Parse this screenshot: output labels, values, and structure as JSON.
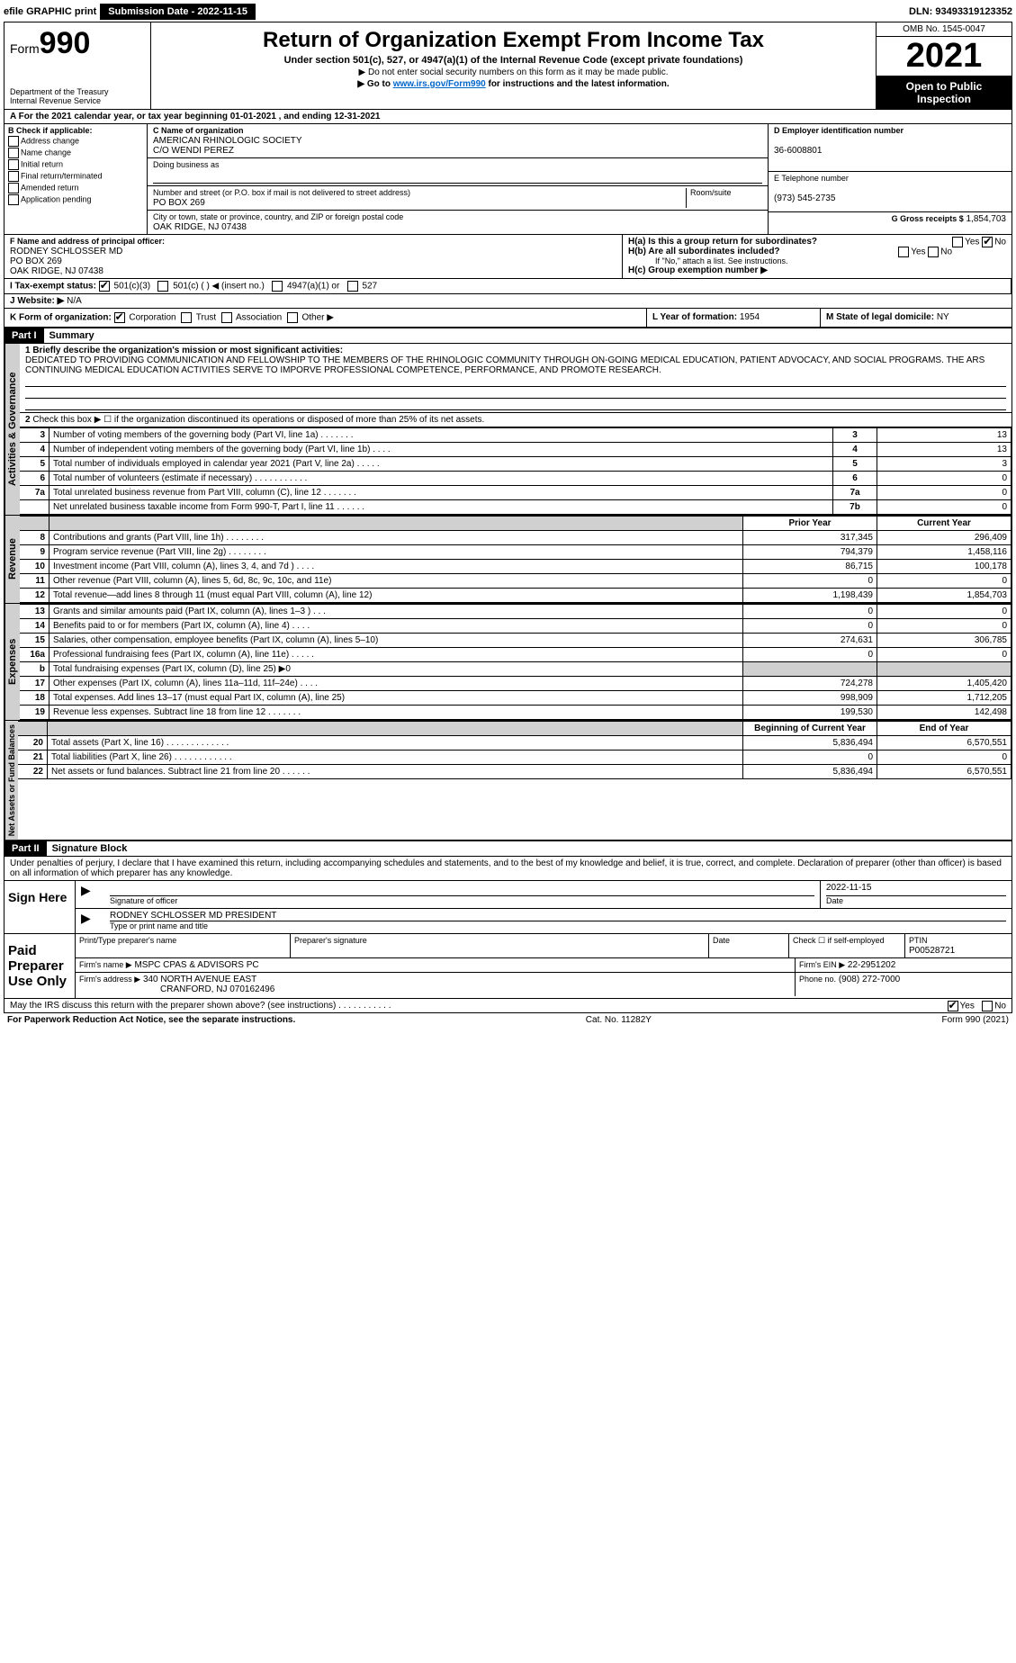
{
  "topbar": {
    "efile": "efile GRAPHIC print",
    "submission_label": "Submission Date - 2022-11-15",
    "dln": "DLN: 93493319123352"
  },
  "header": {
    "form_label": "Form",
    "form_number": "990",
    "dept1": "Department of the Treasury",
    "dept2": "Internal Revenue Service",
    "title": "Return of Organization Exempt From Income Tax",
    "subtitle": "Under section 501(c), 527, or 4947(a)(1) of the Internal Revenue Code (except private foundations)",
    "note1": "▶ Do not enter social security numbers on this form as it may be made public.",
    "note2_pre": "▶ Go to ",
    "note2_link": "www.irs.gov/Form990",
    "note2_post": " for instructions and the latest information.",
    "omb": "OMB No. 1545-0047",
    "year": "2021",
    "inspection": "Open to Public Inspection"
  },
  "periodA": "A For the 2021 calendar year, or tax year beginning 01-01-2021    , and ending 12-31-2021",
  "boxB": {
    "title": "B Check if applicable:",
    "opts": [
      "Address change",
      "Name change",
      "Initial return",
      "Final return/terminated",
      "Amended return",
      "Application pending"
    ]
  },
  "boxC": {
    "label": "C Name of organization",
    "name": "AMERICAN RHINOLOGIC SOCIETY",
    "co": "C/O WENDI PEREZ",
    "dba_label": "Doing business as",
    "addr_label": "Number and street (or P.O. box if mail is not delivered to street address)",
    "room_label": "Room/suite",
    "addr": "PO BOX 269",
    "city_label": "City or town, state or province, country, and ZIP or foreign postal code",
    "city": "OAK RIDGE, NJ  07438"
  },
  "boxD": {
    "label": "D Employer identification number",
    "value": "36-6008801"
  },
  "boxE": {
    "label": "E Telephone number",
    "value": "(973) 545-2735"
  },
  "boxG": {
    "label": "G Gross receipts $",
    "value": "1,854,703"
  },
  "boxF": {
    "label": "F Name and address of principal officer:",
    "name": "RODNEY SCHLOSSER MD",
    "addr1": "PO BOX 269",
    "addr2": "OAK RIDGE, NJ  07438"
  },
  "boxH": {
    "a": "H(a) Is this a group return for subordinates?",
    "b": "H(b) Are all subordinates included?",
    "note": "If \"No,\" attach a list. See instructions.",
    "c": "H(c) Group exemption number ▶",
    "yes": "Yes",
    "no": "No"
  },
  "boxI": {
    "label": "I Tax-exempt status:",
    "o1": "501(c)(3)",
    "o2": "501(c) (    ) ◀ (insert no.)",
    "o3": "4947(a)(1) or",
    "o4": "527"
  },
  "boxJ": {
    "label": "J Website: ▶",
    "value": "N/A"
  },
  "boxK": {
    "label": "K Form of organization:",
    "o1": "Corporation",
    "o2": "Trust",
    "o3": "Association",
    "o4": "Other ▶"
  },
  "boxL": {
    "label": "L Year of formation:",
    "value": "1954"
  },
  "boxM": {
    "label": "M State of legal domicile:",
    "value": "NY"
  },
  "part1": {
    "tag": "Part I",
    "title": "Summary",
    "side_a": "Activities & Governance",
    "side_b": "Revenue",
    "side_c": "Expenses",
    "side_d": "Net Assets or Fund Balances",
    "l1_label": "1 Briefly describe the organization's mission or most significant activities:",
    "l1_text": "DEDICATED TO PROVIDING COMMUNICATION AND FELLOWSHIP TO THE MEMBERS OF THE RHINOLOGIC COMMUNITY THROUGH ON-GOING MEDICAL EDUCATION, PATIENT ADVOCACY, AND SOCIAL PROGRAMS. THE ARS CONTINUING MEDICAL EDUCATION ACTIVITIES SERVE TO IMPORVE PROFESSIONAL COMPETENCE, PERFORMANCE, AND PROMOTE RESEARCH.",
    "l2": "Check this box ▶ ☐ if the organization discontinued its operations or disposed of more than 25% of its net assets.",
    "lines_a": [
      {
        "n": "3",
        "d": "Number of voting members of the governing body (Part VI, line 1a)  .    .    .    .    .    .    .",
        "b": "3",
        "v": "13"
      },
      {
        "n": "4",
        "d": "Number of independent voting members of the governing body (Part VI, line 1b)   .    .    .    .",
        "b": "4",
        "v": "13"
      },
      {
        "n": "5",
        "d": "Total number of individuals employed in calendar year 2021 (Part V, line 2a)   .    .    .    .    .",
        "b": "5",
        "v": "3"
      },
      {
        "n": "6",
        "d": "Total number of volunteers (estimate if necessary)    .    .    .    .    .    .    .    .    .    .    .",
        "b": "6",
        "v": "0"
      },
      {
        "n": "7a",
        "d": "Total unrelated business revenue from Part VIII, column (C), line 12    .    .    .    .    .    .    .",
        "b": "7a",
        "v": "0"
      },
      {
        "n": "",
        "d": "Net unrelated business taxable income from Form 990-T, Part I, line 11    .    .    .    .    .    .",
        "b": "7b",
        "v": "0"
      }
    ],
    "col_prior": "Prior Year",
    "col_current": "Current Year",
    "lines_b": [
      {
        "n": "8",
        "d": "Contributions and grants (Part VIII, line 1h)   .    .    .    .    .    .    .    .",
        "p": "317,345",
        "c": "296,409"
      },
      {
        "n": "9",
        "d": "Program service revenue (Part VIII, line 2g)   .    .    .    .    .    .    .    .",
        "p": "794,379",
        "c": "1,458,116"
      },
      {
        "n": "10",
        "d": "Investment income (Part VIII, column (A), lines 3, 4, and 7d )   .    .    .    .",
        "p": "86,715",
        "c": "100,178"
      },
      {
        "n": "11",
        "d": "Other revenue (Part VIII, column (A), lines 5, 6d, 8c, 9c, 10c, and 11e)",
        "p": "0",
        "c": "0"
      },
      {
        "n": "12",
        "d": "Total revenue—add lines 8 through 11 (must equal Part VIII, column (A), line 12)",
        "p": "1,198,439",
        "c": "1,854,703"
      }
    ],
    "lines_c": [
      {
        "n": "13",
        "d": "Grants and similar amounts paid (Part IX, column (A), lines 1–3 )   .    .    .",
        "p": "0",
        "c": "0"
      },
      {
        "n": "14",
        "d": "Benefits paid to or for members (Part IX, column (A), line 4)   .    .    .    .",
        "p": "0",
        "c": "0"
      },
      {
        "n": "15",
        "d": "Salaries, other compensation, employee benefits (Part IX, column (A), lines 5–10)",
        "p": "274,631",
        "c": "306,785"
      },
      {
        "n": "16a",
        "d": "Professional fundraising fees (Part IX, column (A), line 11e)   .    .    .    .    .",
        "p": "0",
        "c": "0"
      },
      {
        "n": "b",
        "d": "Total fundraising expenses (Part IX, column (D), line 25) ▶0",
        "p": "",
        "c": "",
        "shade": true
      },
      {
        "n": "17",
        "d": "Other expenses (Part IX, column (A), lines 11a–11d, 11f–24e)   .    .    .    .",
        "p": "724,278",
        "c": "1,405,420"
      },
      {
        "n": "18",
        "d": "Total expenses. Add lines 13–17 (must equal Part IX, column (A), line 25)",
        "p": "998,909",
        "c": "1,712,205"
      },
      {
        "n": "19",
        "d": "Revenue less expenses. Subtract line 18 from line 12   .    .    .    .    .    .    .",
        "p": "199,530",
        "c": "142,498"
      }
    ],
    "col_begin": "Beginning of Current Year",
    "col_end": "End of Year",
    "lines_d": [
      {
        "n": "20",
        "d": "Total assets (Part X, line 16)   .    .    .    .    .    .    .    .    .    .    .    .    .",
        "p": "5,836,494",
        "c": "6,570,551"
      },
      {
        "n": "21",
        "d": "Total liabilities (Part X, line 26)   .    .    .    .    .    .    .    .    .    .    .    .",
        "p": "0",
        "c": "0"
      },
      {
        "n": "22",
        "d": "Net assets or fund balances. Subtract line 21 from line 20   .    .    .    .    .    .",
        "p": "5,836,494",
        "c": "6,570,551"
      }
    ]
  },
  "part2": {
    "tag": "Part II",
    "title": "Signature Block",
    "decl": "Under penalties of perjury, I declare that I have examined this return, including accompanying schedules and statements, and to the best of my knowledge and belief, it is true, correct, and complete. Declaration of preparer (other than officer) is based on all information of which preparer has any knowledge.",
    "sign_here": "Sign Here",
    "sig_officer": "Signature of officer",
    "date": "Date",
    "sig_date": "2022-11-15",
    "typed": "Type or print name and title",
    "typed_val": "RODNEY SCHLOSSER MD PRESIDENT",
    "paid": "Paid Preparer Use Only",
    "pp_name_label": "Print/Type preparer's name",
    "pp_sig_label": "Preparer's signature",
    "pp_date_label": "Date",
    "pp_check": "Check ☐ if self-employed",
    "ptin_label": "PTIN",
    "ptin": "P00528721",
    "firm_name_label": "Firm's name    ▶",
    "firm_name": "MSPC CPAS & ADVISORS PC",
    "firm_ein_label": "Firm's EIN ▶",
    "firm_ein": "22-2951202",
    "firm_addr_label": "Firm's address ▶",
    "firm_addr1": "340 NORTH AVENUE EAST",
    "firm_addr2": "CRANFORD, NJ  070162496",
    "phone_label": "Phone no.",
    "phone": "(908) 272-7000",
    "discuss": "May the IRS discuss this return with the preparer shown above? (see instructions)   .    .    .    .    .    .    .    .    .    .    .",
    "yes": "Yes",
    "no": "No"
  },
  "footer": {
    "left": "For Paperwork Reduction Act Notice, see the separate instructions.",
    "mid": "Cat. No. 11282Y",
    "right": "Form 990 (2021)"
  }
}
